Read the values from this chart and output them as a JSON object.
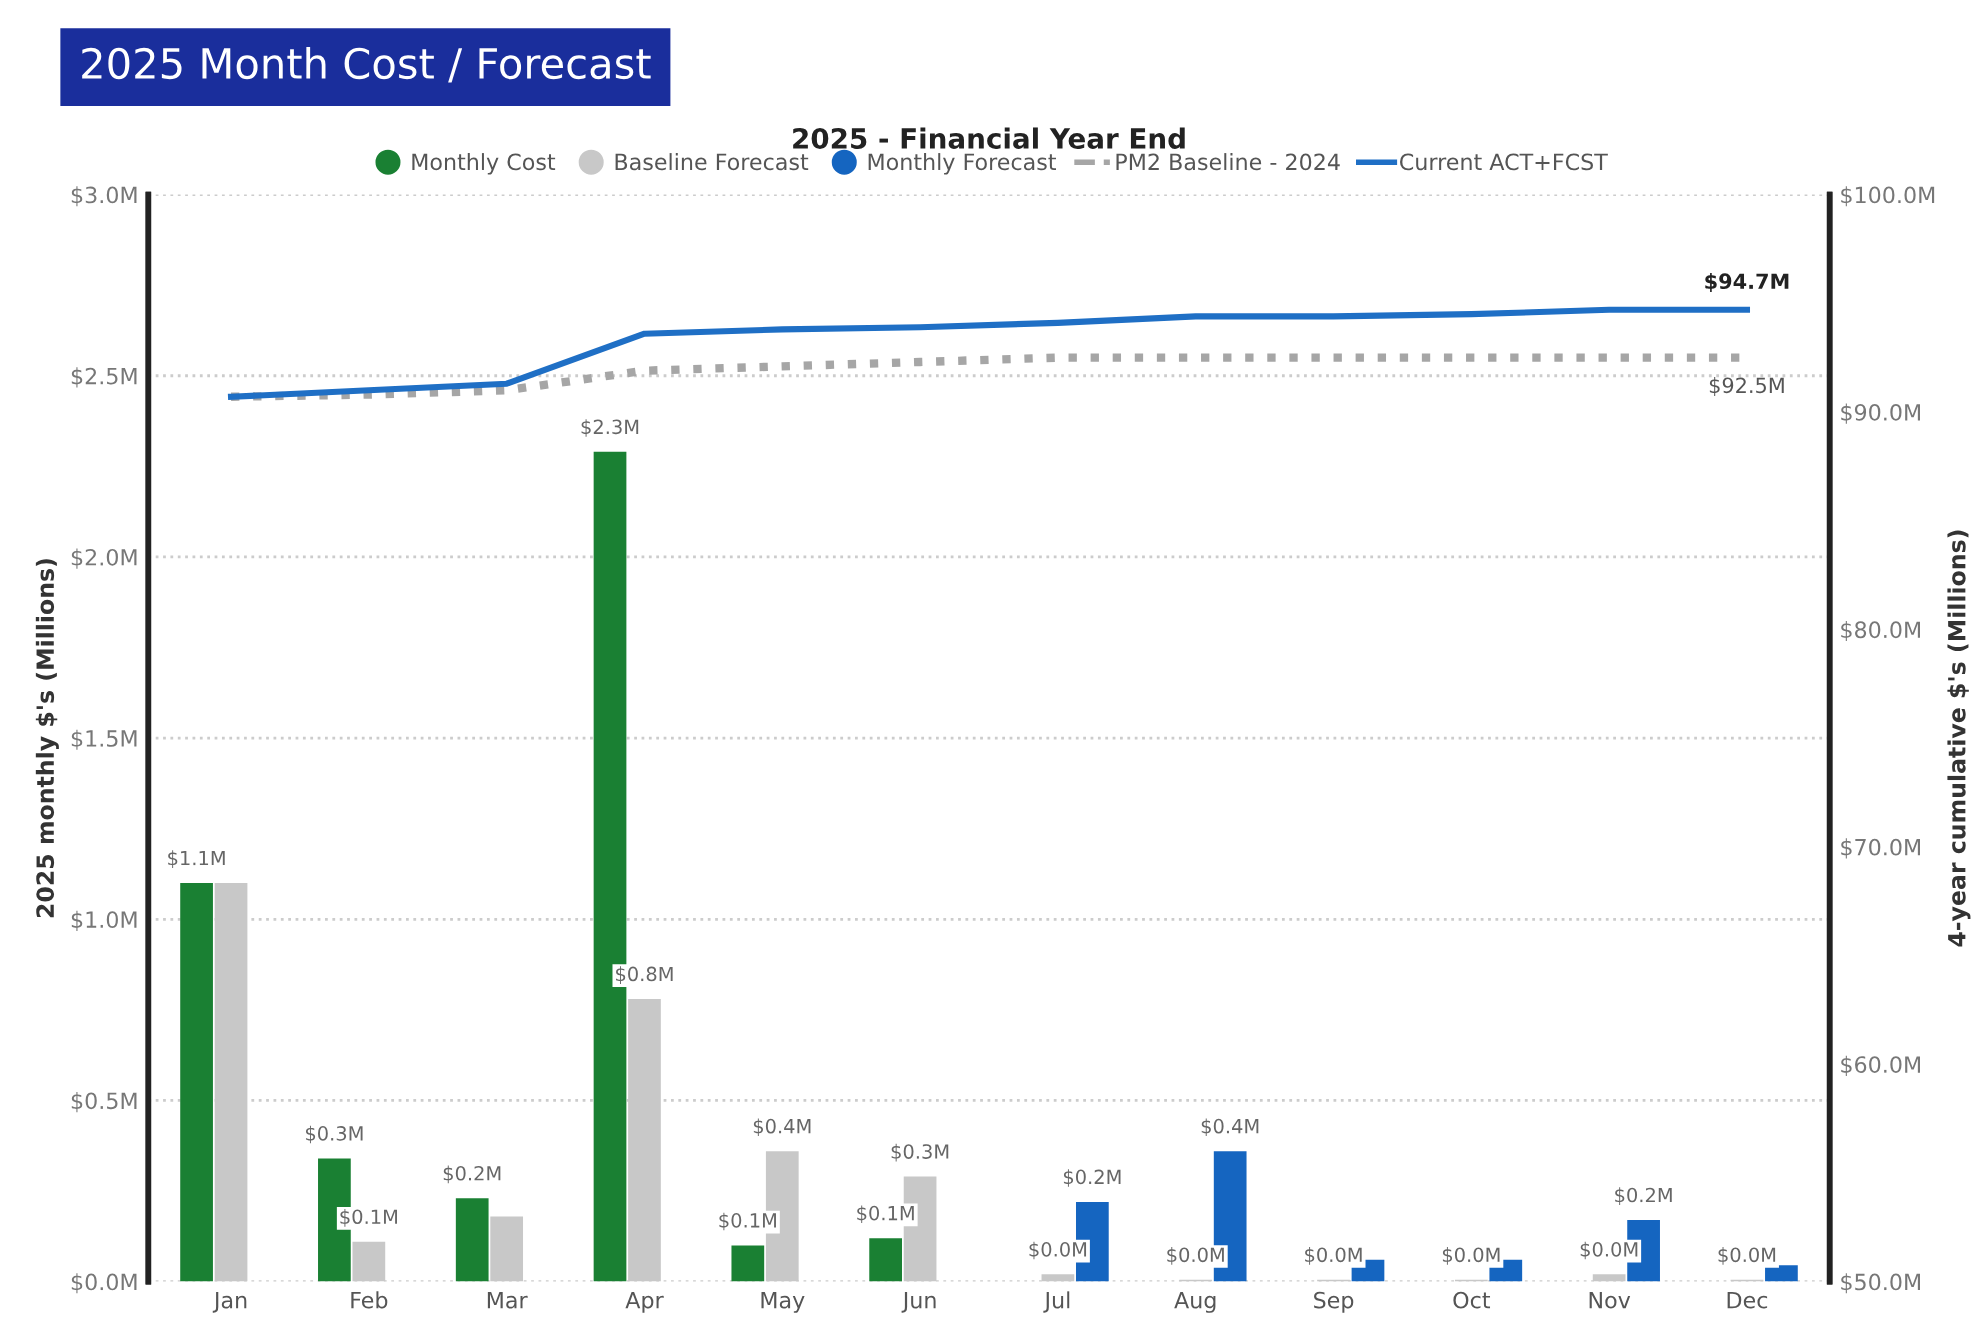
{
  "chart_data": {
    "type": "bar",
    "title": "2025 Month Cost / Forecast",
    "subtitle": "2025 - Financial Year End",
    "ylabel": "2025 monthly $'s (Millions)",
    "y2label": "4-year cumulative $'s (Millions)",
    "categories": [
      "Jan",
      "Feb",
      "Mar",
      "Apr",
      "May",
      "Jun",
      "Jul",
      "Aug",
      "Sep",
      "Oct",
      "Nov",
      "Dec"
    ],
    "series": [
      {
        "name": "Monthly Cost",
        "color": "#1a8033",
        "values": [
          1.1,
          0.34,
          0.23,
          2.29,
          0.1,
          0.12,
          null,
          null,
          null,
          null,
          null,
          null
        ],
        "value_labels": [
          "$1.1M",
          "$0.3M",
          "$0.2M",
          "$2.3M",
          "$0.1M",
          "$0.1M",
          null,
          null,
          null,
          null,
          null,
          null
        ]
      },
      {
        "name": "Baseline Forecast",
        "color": "#c8c8c8",
        "values": [
          1.1,
          0.11,
          0.18,
          0.78,
          0.36,
          0.29,
          0.02,
          0.005,
          0.005,
          0.005,
          0.02,
          0.005
        ],
        "value_labels": [
          null,
          "$0.1M",
          null,
          "$0.8M",
          "$0.4M",
          "$0.3M",
          "$0.0M",
          "$0.0M",
          "$0.0M",
          "$0.0M",
          "$0.0M",
          "$0.0M"
        ]
      },
      {
        "name": "Monthly Forecast",
        "color": "#1565c0",
        "values": [
          null,
          null,
          null,
          null,
          null,
          null,
          0.22,
          0.36,
          0.06,
          0.06,
          0.17,
          0.045
        ],
        "value_labels": [
          null,
          null,
          null,
          null,
          null,
          null,
          "$0.2M",
          "$0.4M",
          null,
          null,
          "$0.2M",
          null
        ]
      },
      {
        "name": "PM2 Baseline - 2024",
        "type": "line",
        "axis": "y2",
        "line_style": "dotted",
        "color": "#a6a6a6",
        "values": [
          90.7,
          90.8,
          91.0,
          91.9,
          92.1,
          92.3,
          92.5,
          92.5,
          92.5,
          92.5,
          92.5,
          92.5
        ],
        "value_labels": [
          null,
          null,
          null,
          null,
          null,
          null,
          null,
          null,
          null,
          null,
          null,
          "$92.5M"
        ]
      },
      {
        "name": "Current ACT+FCST",
        "type": "line",
        "axis": "y2",
        "line_style": "solid",
        "color": "#1f6fc5",
        "values": [
          90.7,
          91.0,
          91.3,
          93.6,
          93.8,
          93.9,
          94.1,
          94.4,
          94.4,
          94.5,
          94.7,
          94.7
        ],
        "value_labels": [
          null,
          null,
          null,
          null,
          null,
          null,
          null,
          null,
          null,
          null,
          null,
          "$94.7M"
        ]
      }
    ],
    "ylim": [
      0,
      3.0
    ],
    "yticks": [
      {
        "value": 0,
        "label": "$0.0M"
      },
      {
        "value": 0.5,
        "label": "$0.5M"
      },
      {
        "value": 1.0,
        "label": "$1.0M"
      },
      {
        "value": 1.5,
        "label": "$1.5M"
      },
      {
        "value": 2.0,
        "label": "$2.0M"
      },
      {
        "value": 2.5,
        "label": "$2.5M"
      },
      {
        "value": 3.0,
        "label": "$3.0M"
      }
    ],
    "y2lim": [
      50,
      100
    ],
    "y2ticks": [
      {
        "value": 50,
        "label": "$50.0M"
      },
      {
        "value": 60,
        "label": "$60.0M"
      },
      {
        "value": 70,
        "label": "$70.0M"
      },
      {
        "value": 80,
        "label": "$80.0M"
      },
      {
        "value": 90,
        "label": "$90.0M"
      },
      {
        "value": 100,
        "label": "$100.0M"
      }
    ],
    "grid": "y",
    "legend": "top"
  }
}
